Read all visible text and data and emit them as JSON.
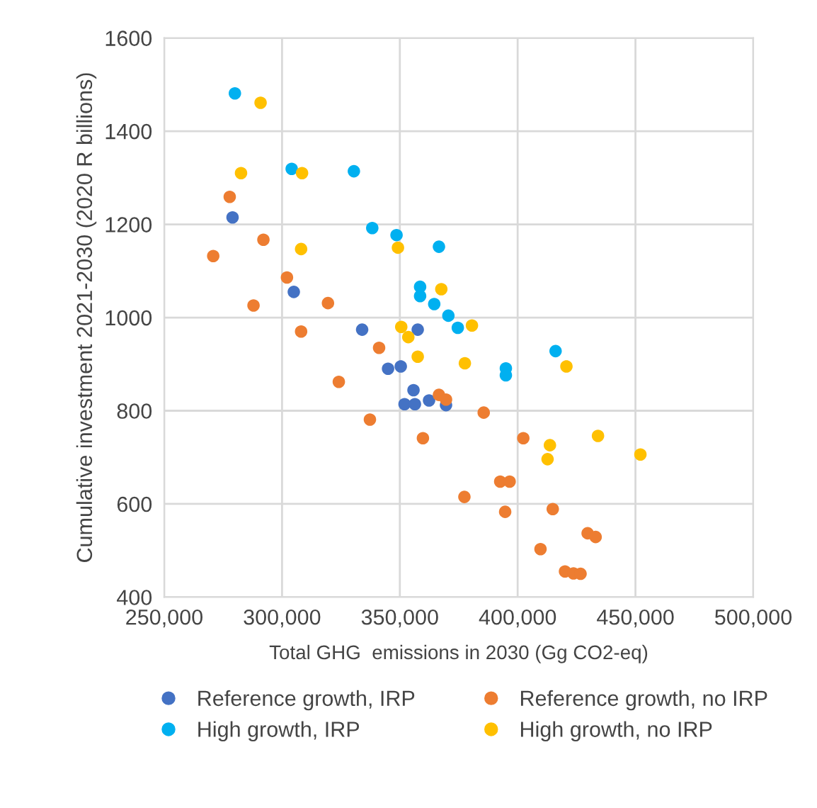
{
  "chart_data": {
    "type": "scatter",
    "xlabel": "Total GHG  emissions in 2030 (Gg CO2-eq)",
    "ylabel": "Cumulative investment 2021-2030 (2020 R billions)",
    "xlim": [
      250000,
      500000
    ],
    "xticks": [
      {
        "value": 250000,
        "label": "250,000"
      },
      {
        "value": 300000,
        "label": "300,000"
      },
      {
        "value": 350000,
        "label": "350,000"
      },
      {
        "value": 400000,
        "label": "400,000"
      },
      {
        "value": 450000,
        "label": "450,000"
      },
      {
        "value": 500000,
        "label": "500,000"
      }
    ],
    "ylim": [
      400,
      1600
    ],
    "yticks": [
      400,
      600,
      800,
      1000,
      1200,
      1400,
      1600
    ],
    "grid": true,
    "legend": "bottom",
    "marker": "circle",
    "series": [
      {
        "name": "Reference growth, IRP",
        "color": "#4472c4",
        "x": [
          279000,
          305000,
          334000,
          357600,
          345000,
          350400,
          355800,
          352000,
          356400,
          362400,
          369600
        ],
        "values": [
          1215,
          1055,
          974,
          974,
          890,
          895,
          844,
          814,
          814,
          822,
          812
        ]
      },
      {
        "name": "Reference growth, no IRP",
        "color": "#ed7d31",
        "x": [
          277800,
          270800,
          292100,
          302100,
          287900,
          308100,
          319500,
          341200,
          324100,
          337300,
          359800,
          366600,
          369600,
          385600,
          402400,
          377400,
          392600,
          396600,
          394700,
          414900,
          409700,
          429700,
          433100,
          420100,
          423700,
          426700
        ],
        "values": [
          1259,
          1132,
          1167,
          1086,
          1026,
          970,
          1031,
          935,
          862,
          781,
          741,
          834,
          824,
          796,
          741,
          615,
          648,
          648,
          583,
          589,
          503,
          537,
          529,
          455,
          451,
          450
        ]
      },
      {
        "name": "High growth, IRP",
        "color": "#00b0f0",
        "x": [
          280000,
          304100,
          330500,
          338300,
          348600,
          366600,
          358600,
          358600,
          364600,
          370600,
          374600,
          395000,
          395000,
          416100
        ],
        "values": [
          1481,
          1319,
          1314,
          1192,
          1177,
          1152,
          1066,
          1046,
          1029,
          1004,
          978,
          891,
          876,
          928
        ]
      },
      {
        "name": "High growth, no IRP",
        "color": "#ffc000",
        "x": [
          290900,
          282600,
          308500,
          308100,
          349200,
          367600,
          350600,
          353600,
          357600,
          380600,
          377600,
          420700,
          413700,
          412700,
          434100,
          452100
        ],
        "values": [
          1461,
          1310,
          1310,
          1147,
          1150,
          1061,
          980,
          958,
          916,
          983,
          902,
          895,
          726,
          696,
          746,
          706
        ]
      }
    ]
  }
}
